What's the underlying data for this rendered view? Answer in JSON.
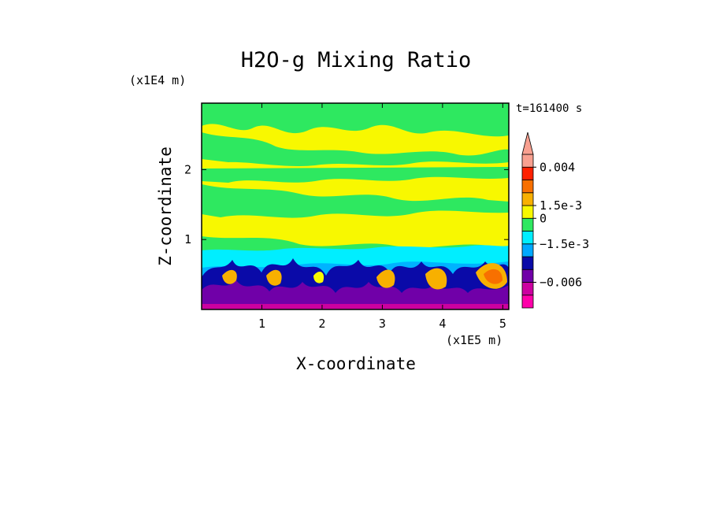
{
  "chart_data": {
    "type": "heatmap",
    "title": "H2O-g Mixing Ratio",
    "xlabel": "X-coordinate",
    "ylabel": "Z-coordinate",
    "x_scale_label": "(x1E5 m)",
    "y_scale_label": "(x1E4 m)",
    "time_label": "t=161400 s",
    "xlim": [
      0,
      5.1
    ],
    "ylim": [
      0,
      2.95
    ],
    "x_ticks": [
      "1",
      "2",
      "3",
      "4",
      "5"
    ],
    "y_ticks": [
      "1",
      "2"
    ],
    "colorbar": {
      "levels": [
        {
          "color": "#ff00aa"
        },
        {
          "color": "#cc00a0"
        },
        {
          "color": "#7000a8"
        },
        {
          "color": "#0a0aa8"
        },
        {
          "color": "#00a8ff"
        },
        {
          "color": "#00eeff"
        },
        {
          "color": "#2ee860"
        },
        {
          "color": "#f8f800"
        },
        {
          "color": "#f8b000"
        },
        {
          "color": "#f87000"
        },
        {
          "color": "#ff2000"
        },
        {
          "color": "#f8a090"
        }
      ],
      "tick_labels": [
        {
          "text": "0.004",
          "boundary": 11
        },
        {
          "text": "1.5e-3",
          "boundary": 8
        },
        {
          "text": "0",
          "boundary": 7
        },
        {
          "text": "−1.5e-3",
          "boundary": 5
        },
        {
          "text": "−0.006",
          "boundary": 2
        }
      ],
      "extend": "max"
    },
    "field_description": {
      "upper": "alternating yellow and green bands",
      "lower": "cyan, blue, purple and magenta cells with orange/red patches near surface"
    }
  }
}
